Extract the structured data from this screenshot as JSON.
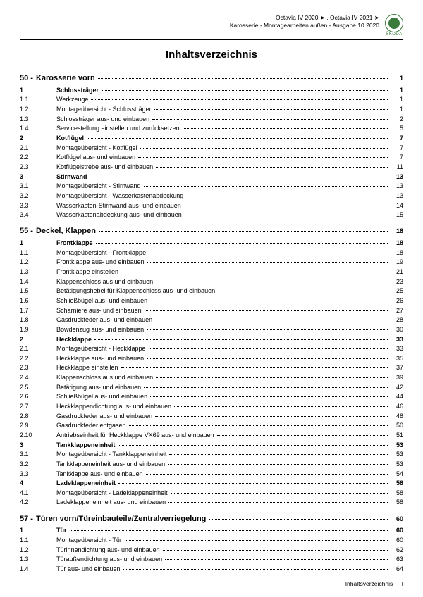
{
  "header": {
    "line1": "Octavia IV 2020 ➤ , Octavia IV 2021 ➤",
    "line2": "Karosserie - Montagearbeiten außen - Ausgabe 10.2020",
    "brand": "ŠKODA"
  },
  "title": "Inhaltsverzeichnis",
  "chapters": [
    {
      "num": "50 -",
      "label": "Karosserie vorn",
      "page": "1",
      "entries": [
        {
          "n": "1",
          "l": "Schlossträger",
          "p": "1",
          "b": true
        },
        {
          "n": "1.1",
          "l": "Werkzeuge",
          "p": "1"
        },
        {
          "n": "1.2",
          "l": "Montageübersicht - Schlossträger",
          "p": "1"
        },
        {
          "n": "1.3",
          "l": "Schlossträger aus- und einbauen",
          "p": "2"
        },
        {
          "n": "1.4",
          "l": "Servicestellung einstellen und zurücksetzen",
          "p": "5"
        },
        {
          "n": "2",
          "l": "Kotflügel",
          "p": "7",
          "b": true
        },
        {
          "n": "2.1",
          "l": "Montageübersicht - Kotflügel",
          "p": "7"
        },
        {
          "n": "2.2",
          "l": "Kotflügel aus- und einbauen",
          "p": "7"
        },
        {
          "n": "2.3",
          "l": "Kotflügelstrebe aus- und einbauen",
          "p": "11"
        },
        {
          "n": "3",
          "l": "Stirnwand",
          "p": "13",
          "b": true
        },
        {
          "n": "3.1",
          "l": "Montageübersicht - Stirnwand",
          "p": "13"
        },
        {
          "n": "3.2",
          "l": "Montageübersicht - Wasserkastenabdeckung",
          "p": "13"
        },
        {
          "n": "3.3",
          "l": "Wasserkasten-Stirnwand aus- und einbauen",
          "p": "14"
        },
        {
          "n": "3.4",
          "l": "Wasserkastenabdeckung aus- und einbauen",
          "p": "15"
        }
      ]
    },
    {
      "num": "55 -",
      "label": "Deckel, Klappen",
      "page": "18",
      "entries": [
        {
          "n": "1",
          "l": "Frontklappe",
          "p": "18",
          "b": true
        },
        {
          "n": "1.1",
          "l": "Montageübersicht - Frontklappe",
          "p": "18"
        },
        {
          "n": "1.2",
          "l": "Frontklappe aus- und einbauen",
          "p": "19"
        },
        {
          "n": "1.3",
          "l": "Frontklappe einstellen",
          "p": "21"
        },
        {
          "n": "1.4",
          "l": "Klappenschloss aus und einbauen",
          "p": "23"
        },
        {
          "n": "1.5",
          "l": "Betätigungshebel für Klappenschloss aus- und einbauen",
          "p": "25"
        },
        {
          "n": "1.6",
          "l": "Schließbügel aus- und einbauen",
          "p": "26"
        },
        {
          "n": "1.7",
          "l": "Scharniere aus- und einbauen",
          "p": "27"
        },
        {
          "n": "1.8",
          "l": "Gasdruckfeder aus- und einbauen",
          "p": "28"
        },
        {
          "n": "1.9",
          "l": "Bowdenzug aus- und einbauen",
          "p": "30"
        },
        {
          "n": "2",
          "l": "Heckklappe",
          "p": "33",
          "b": true
        },
        {
          "n": "2.1",
          "l": "Montageübersicht - Heckklappe",
          "p": "33"
        },
        {
          "n": "2.2",
          "l": "Heckklappe aus- und einbauen",
          "p": "35"
        },
        {
          "n": "2.3",
          "l": "Heckklappe einstellen",
          "p": "37"
        },
        {
          "n": "2.4",
          "l": "Klappenschloss aus und einbauen",
          "p": "39"
        },
        {
          "n": "2.5",
          "l": "Betätigung aus- und einbauen",
          "p": "42"
        },
        {
          "n": "2.6",
          "l": "Schließbügel aus- und einbauen",
          "p": "44"
        },
        {
          "n": "2.7",
          "l": "Heckklappendichtung aus- und einbauen",
          "p": "46"
        },
        {
          "n": "2.8",
          "l": "Gasdruckfeder aus- und einbauen",
          "p": "48"
        },
        {
          "n": "2.9",
          "l": "Gasdruckfeder entgasen",
          "p": "50"
        },
        {
          "n": "2.10",
          "l": "Antriebseinheit für Heckklappe VX69 aus- und einbauen",
          "p": "51"
        },
        {
          "n": "3",
          "l": "Tankklappeneinheit",
          "p": "53",
          "b": true
        },
        {
          "n": "3.1",
          "l": "Montageübersicht - Tankklappeneinheit",
          "p": "53"
        },
        {
          "n": "3.2",
          "l": "Tankklappeneinheit aus- und einbauen",
          "p": "53"
        },
        {
          "n": "3.3",
          "l": "Tankklappe aus- und einbauen",
          "p": "54"
        },
        {
          "n": "4",
          "l": "Ladeklappeneinheit",
          "p": "58",
          "b": true
        },
        {
          "n": "4.1",
          "l": "Montageübersicht - Ladeklappeneinheit",
          "p": "58"
        },
        {
          "n": "4.2",
          "l": "Ladeklappeneinheit aus- und einbauen",
          "p": "58"
        }
      ]
    },
    {
      "num": "57 -",
      "label": "Türen vorn/Türeinbauteile/Zentralverriegelung",
      "page": "60",
      "entries": [
        {
          "n": "1",
          "l": "Tür",
          "p": "60",
          "b": true
        },
        {
          "n": "1.1",
          "l": "Montageübersicht - Tür",
          "p": "60"
        },
        {
          "n": "1.2",
          "l": "Türinnendichtung aus- und einbauen",
          "p": "62"
        },
        {
          "n": "1.3",
          "l": "Türaußendichtung aus- und einbauen",
          "p": "63"
        },
        {
          "n": "1.4",
          "l": "Tür aus- und einbauen",
          "p": "64"
        }
      ]
    }
  ],
  "footer": {
    "label": "Inhaltsverzeichnis",
    "pageRoman": "I"
  }
}
